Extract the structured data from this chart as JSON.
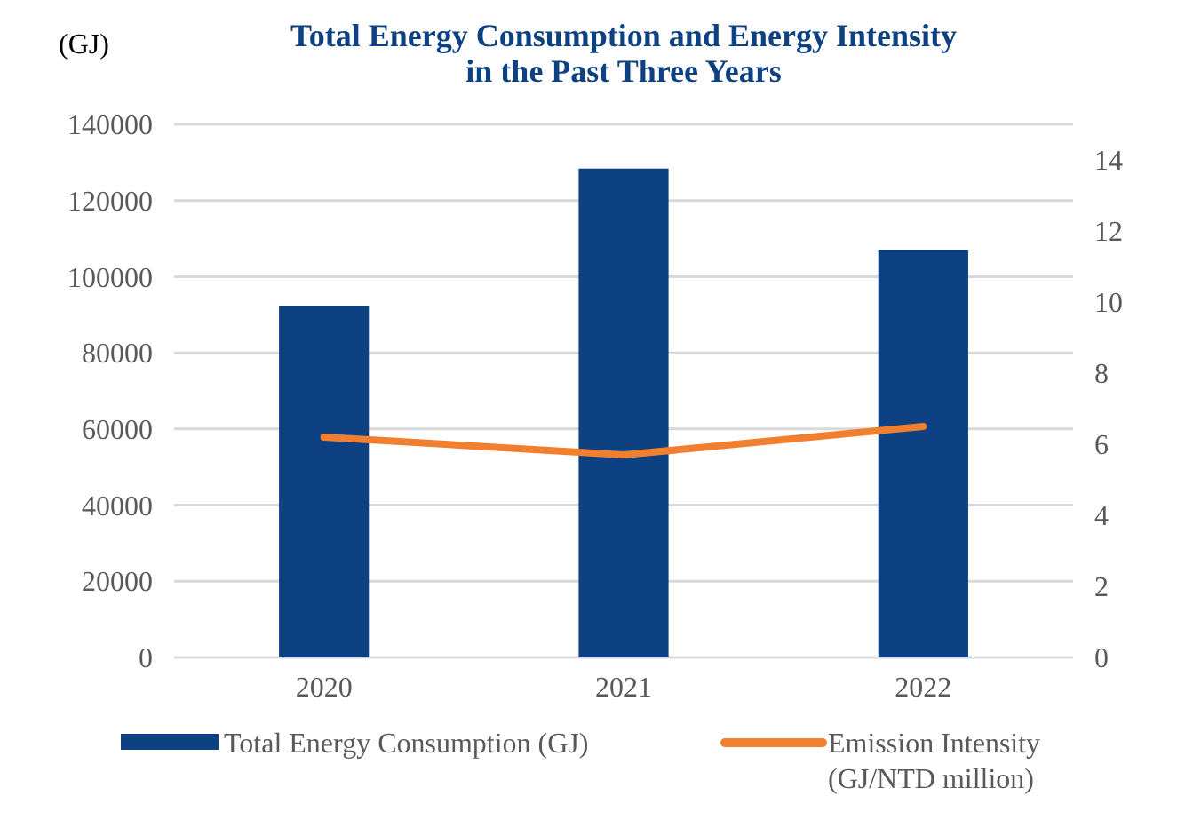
{
  "chart_data": {
    "type": "bar",
    "title": "Total Energy Consumption and Energy Intensity in the Past Three Years",
    "ylabel": "(GJ)",
    "categories": [
      "2020",
      "2021",
      "2022"
    ],
    "series": [
      {
        "name": "Total Energy Consumption (GJ)",
        "color": "#0e4181",
        "values": [
          92400,
          128400,
          107100
        ]
      },
      {
        "name": "Emission Intensity (GJ/NTD million)",
        "type": "line",
        "axis": "y2",
        "color": "#f07f2f",
        "values": [
          6.2,
          5.7,
          6.5
        ]
      }
    ],
    "ylim": [
      0,
      140000
    ],
    "yticks": [
      0,
      20000,
      40000,
      60000,
      80000,
      100000,
      120000,
      140000
    ],
    "y2lim": [
      0,
      15
    ],
    "y2ticks": [
      0,
      2,
      4,
      6,
      8,
      10,
      12,
      14
    ],
    "grid": "y",
    "legend": "bottom"
  }
}
